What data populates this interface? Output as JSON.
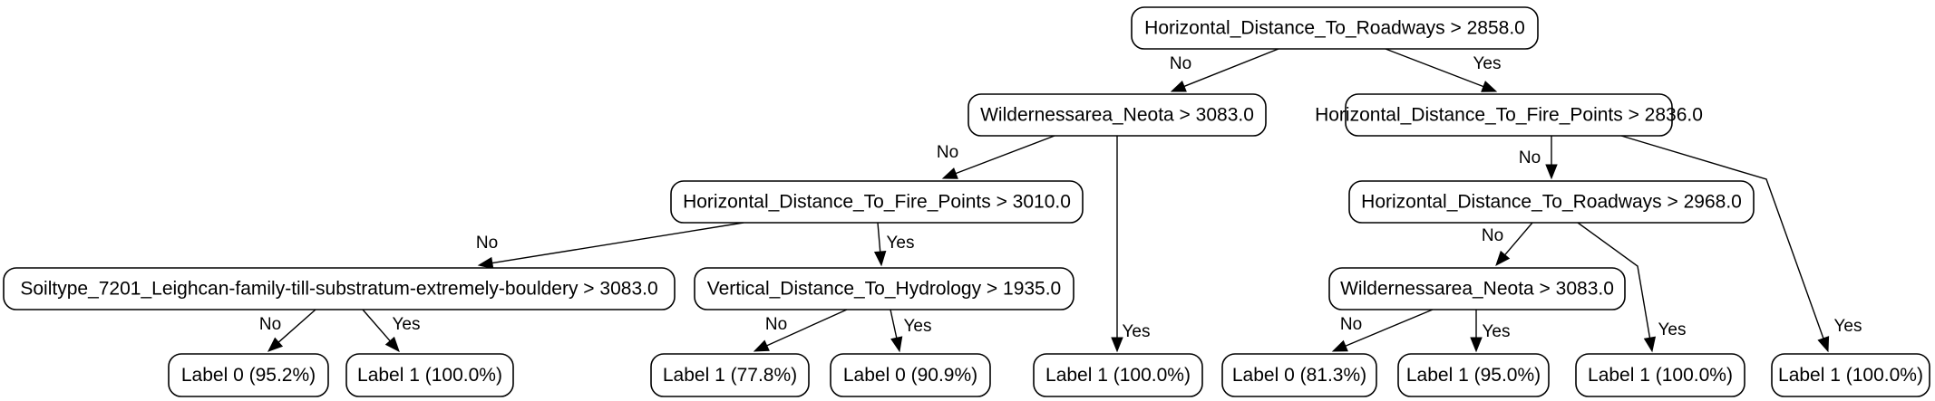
{
  "tree": {
    "nodes": {
      "root": "Horizontal_Distance_To_Roadways > 2858.0",
      "n_l": "Wildernessarea_Neota > 3083.0",
      "n_r": "Horizontal_Distance_To_Fire_Points > 2836.0",
      "n_ll": "Horizontal_Distance_To_Fire_Points > 3010.0",
      "n_lr": "Label 1 (100.0%)",
      "n_rl": "Horizontal_Distance_To_Roadways > 2968.0",
      "n_rr": "Label 1 (100.0%)",
      "n_lll": "Soiltype_7201_Leighcan-family-till-substratum-extremely-bouldery > 3083.0",
      "n_llr": "Vertical_Distance_To_Hydrology > 1935.0",
      "n_rll": "Wildernessarea_Neota > 3083.0",
      "n_rlr": "Label 1 (100.0%)",
      "n_llll": "Label 0 (95.2%)",
      "n_lllr": "Label 1 (100.0%)",
      "n_llrl": "Label 1 (77.8%)",
      "n_llrr": "Label 0 (90.9%)",
      "n_rlll": "Label 0 (81.3%)",
      "n_rllr": "Label 1 (95.0%)"
    },
    "edge_labels": {
      "no": "No",
      "yes": "Yes"
    }
  }
}
